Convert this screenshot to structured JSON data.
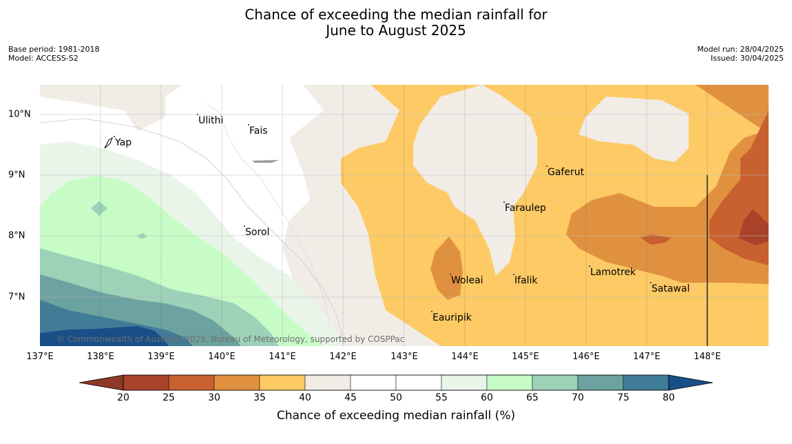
{
  "title": {
    "line1": "Chance of exceeding the median rainfall for",
    "line2": "June to August 2025"
  },
  "meta_left": {
    "base_period": "Base period: 1981-2018",
    "model": "Model: ACCESS-S2"
  },
  "meta_right": {
    "model_run": "Model run: 28/04/2025",
    "issued": "Issued: 30/04/2025"
  },
  "map": {
    "lon_labels": [
      "137°E",
      "138°E",
      "139°E",
      "140°E",
      "141°E",
      "142°E",
      "143°E",
      "144°E",
      "145°E",
      "146°E",
      "147°E",
      "148°E"
    ],
    "lat_labels": [
      "10°N",
      "9°N",
      "8°N",
      "7°N"
    ],
    "places": [
      "Ulithi",
      "Fais",
      "Yap",
      "Gaferut",
      "Faraulep",
      "Sorol",
      "Woleai",
      "Ifalik",
      "Lamotrek",
      "Satawal",
      "Eauripik"
    ],
    "copyright": "© Commonwealth of Australia 2025, Bureau of Meteorology, supported by COSPPac"
  },
  "legend": {
    "ticks": [
      "20",
      "25",
      "30",
      "35",
      "40",
      "45",
      "50",
      "55",
      "60",
      "65",
      "70",
      "75",
      "80"
    ],
    "label": "Chance of exceeding median rainfall (%)",
    "colors": [
      "#a8432a",
      "#c8602f",
      "#e0913f",
      "#fdca65",
      "#f1ece6",
      "#ffffff",
      "#ffffff",
      "#eaf5e9",
      "#c7fcc7",
      "#9dd1b8",
      "#6ca3a0",
      "#417c97",
      "#174f88"
    ]
  }
}
